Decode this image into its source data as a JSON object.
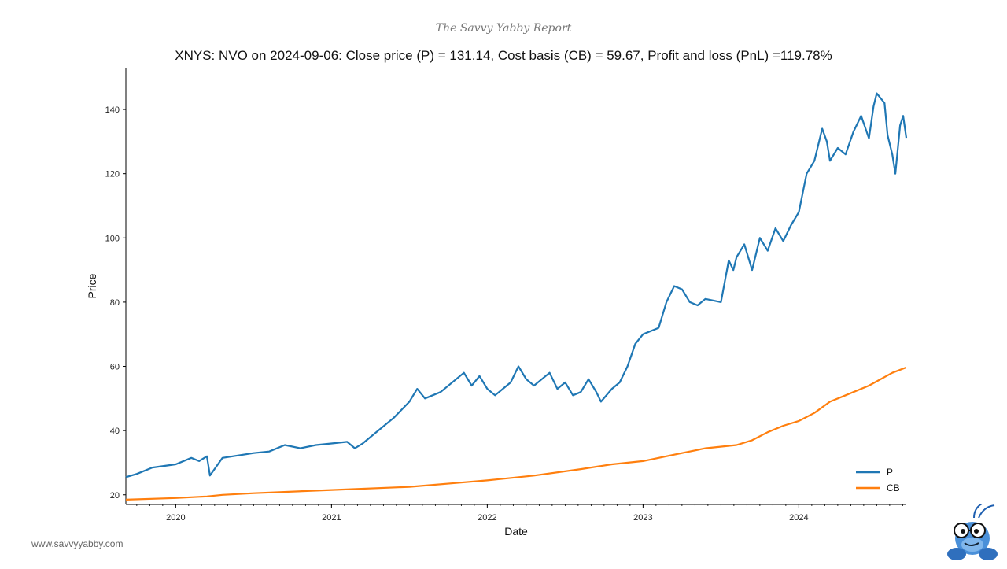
{
  "header": {
    "brand": "The Savvy Yabby Report",
    "title": "XNYS: NVO on 2024-09-06: Close price (P) = 131.14, Cost basis (CB) = 59.67, Profit and loss (PnL) =119.78%"
  },
  "footer": {
    "website": "www.savvyyabby.com"
  },
  "logo": {
    "icon": "yabby-mascot-icon"
  },
  "colors": {
    "price": "#1f77b4",
    "cost_basis": "#ff7f0e"
  },
  "chart_data": {
    "type": "line",
    "title": "XNYS: NVO on 2024-09-06: Close price (P) = 131.14, Cost basis (CB) = 59.67, Profit and loss (PnL) =119.78%",
    "xlabel": "Date",
    "ylabel": "Price",
    "xlim": [
      2019.68,
      2024.69
    ],
    "ylim": [
      17,
      153
    ],
    "x_ticks": [
      2020,
      2021,
      2022,
      2023,
      2024
    ],
    "x_tick_labels": [
      "2020",
      "2021",
      "2022",
      "2023",
      "2024"
    ],
    "y_ticks": [
      20,
      40,
      60,
      80,
      100,
      120,
      140
    ],
    "y_tick_labels": [
      "20",
      "40",
      "60",
      "80",
      "100",
      "120",
      "140"
    ],
    "legend": {
      "position": "bottom-right",
      "entries": [
        "P",
        "CB"
      ]
    },
    "series": [
      {
        "name": "P",
        "x": [
          2019.68,
          2019.75,
          2019.85,
          2020.0,
          2020.1,
          2020.15,
          2020.2,
          2020.22,
          2020.3,
          2020.5,
          2020.6,
          2020.7,
          2020.8,
          2020.9,
          2021.0,
          2021.1,
          2021.15,
          2021.2,
          2021.3,
          2021.4,
          2021.5,
          2021.55,
          2021.6,
          2021.7,
          2021.8,
          2021.85,
          2021.9,
          2021.95,
          2022.0,
          2022.05,
          2022.1,
          2022.15,
          2022.2,
          2022.25,
          2022.3,
          2022.35,
          2022.4,
          2022.45,
          2022.5,
          2022.55,
          2022.6,
          2022.65,
          2022.7,
          2022.73,
          2022.8,
          2022.85,
          2022.9,
          2022.95,
          2023.0,
          2023.1,
          2023.15,
          2023.2,
          2023.25,
          2023.3,
          2023.35,
          2023.4,
          2023.5,
          2023.55,
          2023.58,
          2023.6,
          2023.65,
          2023.7,
          2023.75,
          2023.8,
          2023.85,
          2023.9,
          2023.95,
          2024.0,
          2024.05,
          2024.1,
          2024.15,
          2024.18,
          2024.2,
          2024.25,
          2024.3,
          2024.35,
          2024.4,
          2024.45,
          2024.48,
          2024.5,
          2024.55,
          2024.57,
          2024.6,
          2024.62,
          2024.65,
          2024.67,
          2024.69
        ],
        "values": [
          25.5,
          26.5,
          28.5,
          29.5,
          31.5,
          30.5,
          32.0,
          26.0,
          31.5,
          33.0,
          33.5,
          35.5,
          34.5,
          35.5,
          36.0,
          36.5,
          34.5,
          36.0,
          40.0,
          44.0,
          49.0,
          53.0,
          50.0,
          52.0,
          56.0,
          58.0,
          54.0,
          57.0,
          53.0,
          51.0,
          53.0,
          55.0,
          60.0,
          56.0,
          54.0,
          56.0,
          58.0,
          53.0,
          55.0,
          51.0,
          52.0,
          56.0,
          52.0,
          49.0,
          53.0,
          55.0,
          60.0,
          67.0,
          70.0,
          72.0,
          80.0,
          85.0,
          84.0,
          80.0,
          79.0,
          81.0,
          80.0,
          93.0,
          90.0,
          94.0,
          98.0,
          90.0,
          100.0,
          96.0,
          103.0,
          99.0,
          104.0,
          108.0,
          120.0,
          124.0,
          134.0,
          130.0,
          124.0,
          128.0,
          126.0,
          133.0,
          138.0,
          131.0,
          141.0,
          145.0,
          142.0,
          132.0,
          126.0,
          120.0,
          135.0,
          138.0,
          131.14
        ]
      },
      {
        "name": "CB",
        "x": [
          2019.68,
          2020.0,
          2020.2,
          2020.3,
          2020.5,
          2021.0,
          2021.5,
          2021.8,
          2022.0,
          2022.3,
          2022.6,
          2022.8,
          2023.0,
          2023.2,
          2023.4,
          2023.6,
          2023.7,
          2023.8,
          2023.9,
          2024.0,
          2024.1,
          2024.2,
          2024.3,
          2024.45,
          2024.6,
          2024.69
        ],
        "values": [
          18.5,
          19.0,
          19.5,
          20.0,
          20.5,
          21.5,
          22.5,
          23.7,
          24.5,
          26.0,
          28.0,
          29.5,
          30.5,
          32.5,
          34.5,
          35.5,
          37.0,
          39.5,
          41.5,
          43.0,
          45.5,
          49.0,
          51.0,
          54.0,
          58.0,
          59.67
        ]
      }
    ]
  }
}
